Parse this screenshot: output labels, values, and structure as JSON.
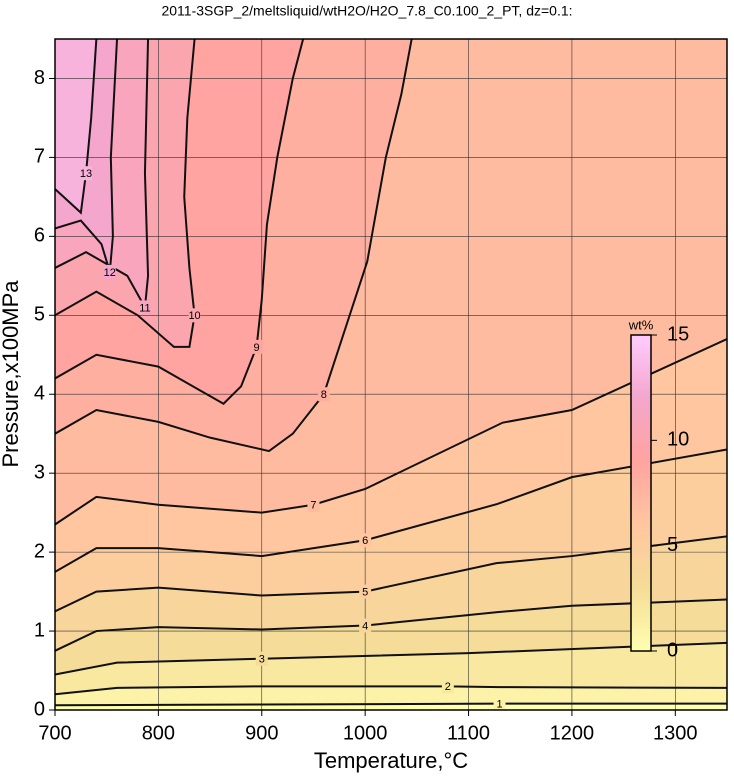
{
  "chart_data": {
    "type": "contour",
    "title": "2011-3SGP_2/meltsliquid/wtH2O/H2O_7.8_C0.100_2_PT, dz=0.1:",
    "xlabel": "Temperature,°C",
    "ylabel": "Pressure,x100MPa",
    "xlim": [
      700,
      1350
    ],
    "ylim": [
      0,
      8.5
    ],
    "xticks": [
      700,
      800,
      900,
      1000,
      1100,
      1200,
      1300
    ],
    "yticks": [
      0,
      1,
      2,
      3,
      4,
      5,
      6,
      7,
      8
    ],
    "grid": true,
    "colormap": [
      "#ffffb0",
      "#f5dc98",
      "#ffc6a0",
      "#ffa4a0",
      "#f4a6cc",
      "#ffccff"
    ],
    "colorbar": {
      "label": "wt%",
      "lim": [
        0,
        15
      ],
      "ticks": [
        0,
        5,
        10,
        15
      ]
    },
    "contours": [
      {
        "level": 1,
        "x": [
          700,
          900,
          1130,
          1350
        ],
        "y": [
          0.06,
          0.07,
          0.08,
          0.08
        ]
      },
      {
        "level": 2,
        "x": [
          700,
          760,
          900,
          1080,
          1130,
          1350
        ],
        "y": [
          0.2,
          0.28,
          0.3,
          0.3,
          0.29,
          0.28
        ]
      },
      {
        "level": 3,
        "x": [
          700,
          760,
          900,
          1100,
          1350
        ],
        "y": [
          0.45,
          0.6,
          0.65,
          0.72,
          0.85
        ]
      },
      {
        "level": 4,
        "x": [
          700,
          740,
          800,
          900,
          1000,
          1128,
          1200,
          1350
        ],
        "y": [
          0.75,
          1.0,
          1.05,
          1.02,
          1.07,
          1.24,
          1.32,
          1.4
        ]
      },
      {
        "level": 5,
        "x": [
          700,
          740,
          800,
          900,
          1000,
          1127,
          1200,
          1350
        ],
        "y": [
          1.25,
          1.5,
          1.55,
          1.45,
          1.5,
          1.86,
          1.95,
          2.2
        ]
      },
      {
        "level": 6,
        "x": [
          700,
          740,
          800,
          900,
          1000,
          1128,
          1200,
          1350
        ],
        "y": [
          1.75,
          2.05,
          2.05,
          1.95,
          2.15,
          2.61,
          2.95,
          3.3
        ]
      },
      {
        "level": 7,
        "x": [
          700,
          740,
          800,
          900,
          950,
          1000,
          1133,
          1200,
          1350
        ],
        "y": [
          2.35,
          2.7,
          2.6,
          2.5,
          2.6,
          2.8,
          3.64,
          3.8,
          4.7
        ]
      },
      {
        "level": 8,
        "x": [
          700,
          740,
          800,
          850,
          907,
          930,
          960,
          985,
          1002,
          1020,
          1035,
          1045
        ],
        "y": [
          3.5,
          3.8,
          3.65,
          3.45,
          3.28,
          3.5,
          4.0,
          5.0,
          5.68,
          7.0,
          7.8,
          8.5
        ]
      },
      {
        "level": 9,
        "x": [
          700,
          740,
          800,
          840,
          863,
          880,
          895,
          900,
          905,
          915,
          930,
          940
        ],
        "y": [
          4.2,
          4.5,
          4.35,
          4.05,
          3.88,
          4.1,
          4.6,
          5.2,
          6.15,
          7.0,
          8.0,
          8.5
        ]
      },
      {
        "level": 10,
        "x": [
          700,
          740,
          780,
          815,
          830,
          835,
          830,
          825,
          828,
          835
        ],
        "y": [
          5.0,
          5.3,
          5.0,
          4.6,
          4.6,
          5.0,
          5.6,
          6.5,
          7.5,
          8.5
        ]
      },
      {
        "level": 11,
        "x": [
          700,
          730,
          770,
          787,
          790,
          787,
          790
        ],
        "y": [
          5.6,
          5.8,
          5.5,
          5.1,
          5.5,
          6.8,
          8.5
        ]
      },
      {
        "level": 12,
        "x": [
          700,
          725,
          745,
          753,
          756,
          754,
          760
        ],
        "y": [
          6.1,
          6.2,
          5.9,
          5.55,
          6.0,
          7.0,
          8.5
        ]
      },
      {
        "level": 13,
        "x": [
          700,
          725,
          730,
          735,
          740
        ],
        "y": [
          6.6,
          6.3,
          6.8,
          7.5,
          8.5
        ]
      }
    ]
  }
}
